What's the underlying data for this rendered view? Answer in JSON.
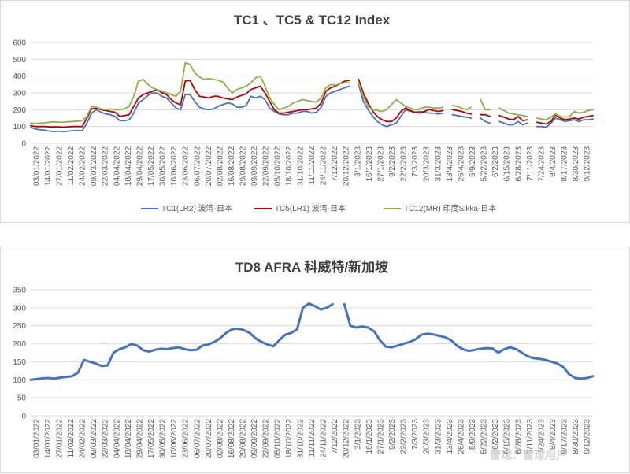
{
  "watermark": "雪球：雪球用户",
  "chart_data": [
    {
      "type": "line",
      "title": "TC1 、TC5 & TC12 Index",
      "ylim": [
        0,
        600
      ],
      "yticks": [
        0,
        100,
        200,
        300,
        400,
        500,
        600
      ],
      "grid": true,
      "legend": "bottom",
      "x_tick_labels": [
        "03/01/2022",
        "14/01/2022",
        "27/01/2022",
        "11/02/2022",
        "24/02/2022",
        "09/03/2022",
        "22/03/2022",
        "04/04/2022",
        "18/04/2022",
        "29/04/2022",
        "17/05/2022",
        "30/05/2022",
        "10/06/2022",
        "23/06/2022",
        "06/07/2022",
        "20/07/2022",
        "02/08/2022",
        "16/08/2022",
        "29/08/2022",
        "09/09/2022",
        "22/09/2022",
        "05/10/2022",
        "18/10/2022",
        "31/10/2022",
        "11/11/2022",
        "24/11/2022",
        "7/12/2022",
        "20/12/2022",
        "3/1/2023",
        "16/1/2023",
        "27/1/2023",
        "9/2/2023",
        "22/2/2023",
        "7/3/2023",
        "20/3/2023",
        "31/3/2023",
        "13/4/2023",
        "26/4/2023",
        "5/9/2023",
        "5/22/2023",
        "6/2/2023",
        "6/15/2023",
        "6/28/2023",
        "7/11/2023",
        "7/24/2023",
        "8/4/2023",
        "8/17/2023",
        "8/30/2023",
        "9/12/2023"
      ],
      "series": [
        {
          "name": "TC1(LR2) 波湾-日本",
          "color": "#4472c4",
          "values": [
            95,
            85,
            80,
            78,
            72,
            70,
            72,
            70,
            72,
            75,
            76,
            75,
            120,
            180,
            200,
            185,
            175,
            170,
            160,
            135,
            135,
            140,
            180,
            240,
            260,
            285,
            300,
            300,
            280,
            270,
            240,
            210,
            200,
            290,
            290,
            250,
            215,
            205,
            200,
            205,
            220,
            230,
            240,
            235,
            215,
            215,
            225,
            280,
            270,
            280,
            260,
            210,
            190,
            175,
            170,
            170,
            180,
            180,
            190,
            190,
            180,
            185,
            215,
            280,
            300,
            310,
            320,
            330,
            340,
            null,
            350,
            250,
            200,
            160,
            130,
            110,
            100,
            110,
            120,
            160,
            200,
            190,
            185,
            190,
            185,
            180,
            180,
            175,
            180,
            null,
            170,
            165,
            160,
            155,
            150,
            null,
            150,
            130,
            120,
            null,
            130,
            120,
            110,
            110,
            130,
            110,
            120,
            null,
            100,
            100,
            95,
            120,
            150,
            140,
            130,
            135,
            140,
            130,
            140,
            140,
            145
          ]
        },
        {
          "name": "TC5(LR1) 波湾-日本",
          "color": "#c00000",
          "values": [
            105,
            100,
            100,
            100,
            98,
            98,
            98,
            96,
            98,
            100,
            100,
            100,
            150,
            205,
            210,
            200,
            195,
            190,
            185,
            160,
            165,
            170,
            220,
            270,
            290,
            300,
            310,
            320,
            300,
            290,
            260,
            240,
            230,
            370,
            375,
            320,
            280,
            275,
            270,
            280,
            280,
            270,
            265,
            260,
            275,
            285,
            295,
            320,
            330,
            340,
            300,
            250,
            200,
            180,
            180,
            185,
            190,
            195,
            200,
            200,
            205,
            210,
            240,
            310,
            330,
            340,
            355,
            370,
            375,
            null,
            380,
            300,
            240,
            190,
            160,
            140,
            130,
            130,
            150,
            190,
            210,
            195,
            185,
            180,
            190,
            200,
            195,
            190,
            195,
            null,
            200,
            195,
            190,
            180,
            175,
            null,
            170,
            170,
            160,
            null,
            165,
            155,
            145,
            140,
            160,
            135,
            140,
            null,
            125,
            120,
            115,
            130,
            170,
            150,
            140,
            145,
            150,
            145,
            155,
            160,
            165
          ]
        },
        {
          "name": "TC12(MR) 印度Sikka-日本",
          "color": "#8fb046",
          "values": [
            120,
            118,
            120,
            122,
            125,
            128,
            125,
            126,
            128,
            130,
            132,
            135,
            160,
            220,
            215,
            205,
            200,
            205,
            200,
            200,
            205,
            220,
            280,
            370,
            380,
            350,
            330,
            320,
            310,
            300,
            290,
            280,
            310,
            480,
            470,
            420,
            395,
            380,
            385,
            380,
            375,
            365,
            330,
            300,
            320,
            330,
            340,
            360,
            390,
            400,
            340,
            270,
            230,
            200,
            210,
            220,
            240,
            250,
            260,
            255,
            250,
            245,
            270,
            330,
            350,
            345,
            355,
            360,
            360,
            null,
            360,
            280,
            220,
            200,
            195,
            190,
            200,
            230,
            260,
            240,
            220,
            210,
            200,
            205,
            215,
            215,
            210,
            210,
            215,
            null,
            225,
            220,
            210,
            200,
            215,
            null,
            260,
            200,
            200,
            null,
            210,
            195,
            180,
            175,
            170,
            165,
            160,
            null,
            150,
            145,
            140,
            155,
            175,
            160,
            155,
            160,
            190,
            180,
            185,
            195,
            200
          ]
        }
      ]
    },
    {
      "type": "line",
      "title": "TD8 AFRA 科威特/新加坡",
      "ylim": [
        0,
        350
      ],
      "yticks": [
        0,
        50,
        100,
        150,
        200,
        250,
        300,
        350
      ],
      "grid": true,
      "legend": "none",
      "x_tick_labels": [
        "03/01/2022",
        "14/01/2022",
        "27/01/2022",
        "11/02/2022",
        "24/02/2022",
        "09/03/2022",
        "22/03/2022",
        "04/04/2022",
        "18/04/2022",
        "29/04/2022",
        "17/05/2022",
        "30/05/2022",
        "10/06/2022",
        "23/06/2022",
        "06/07/2022",
        "20/07/2022",
        "02/08/2022",
        "16/08/2022",
        "29/08/2022",
        "09/09/2022",
        "22/09/2022",
        "05/10/2022",
        "18/10/2022",
        "31/10/2022",
        "11/11/2022",
        "24/11/2022",
        "7/12/2022",
        "20/12/2022",
        "3/1/2023",
        "16/1/2023",
        "27/1/2023",
        "9/2/2023",
        "22/2/2023",
        "7/3/2023",
        "20/3/2023",
        "31/3/2023",
        "13/4/2023",
        "26/4/2023",
        "5/9/2023",
        "5/22/2023",
        "6/2/2023",
        "6/15/2023",
        "6/28/2023",
        "7/11/2023",
        "7/24/2023",
        "8/4/2023",
        "8/17/2023",
        "8/30/2023",
        "9/12/2023"
      ],
      "series": [
        {
          "name": "",
          "color": "#4472c4",
          "values": [
            100,
            102,
            104,
            105,
            103,
            106,
            108,
            110,
            120,
            155,
            150,
            145,
            138,
            140,
            175,
            185,
            190,
            200,
            195,
            182,
            178,
            183,
            186,
            185,
            188,
            190,
            185,
            182,
            183,
            195,
            198,
            205,
            215,
            230,
            240,
            242,
            238,
            230,
            215,
            205,
            198,
            193,
            210,
            225,
            230,
            240,
            300,
            312,
            305,
            295,
            300,
            310,
            null,
            310,
            250,
            245,
            248,
            245,
            235,
            210,
            192,
            190,
            195,
            200,
            205,
            212,
            225,
            228,
            226,
            222,
            218,
            210,
            195,
            185,
            180,
            183,
            186,
            188,
            187,
            175,
            185,
            190,
            185,
            175,
            165,
            160,
            158,
            155,
            150,
            145,
            135,
            115,
            105,
            103,
            105,
            110
          ]
        }
      ]
    }
  ]
}
